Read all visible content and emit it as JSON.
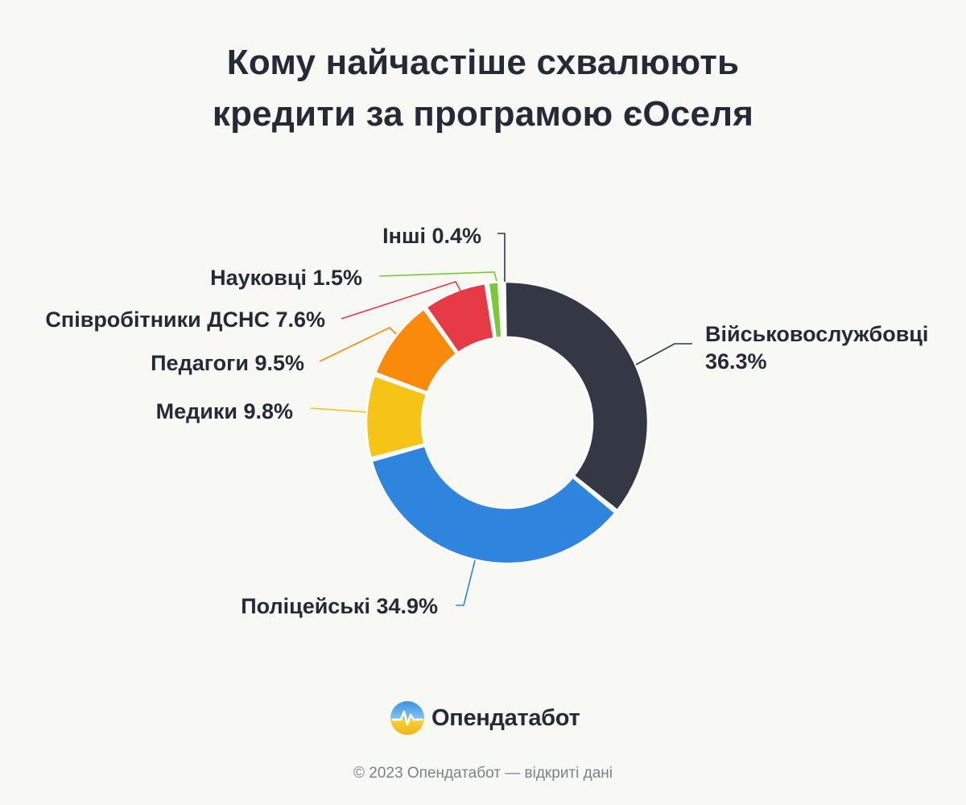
{
  "title": {
    "line1": "Кому найчастіше схвалюють",
    "line2": "кредити за програмою єОселя"
  },
  "chart_data": {
    "type": "pie",
    "variant": "donut",
    "categories": [
      "Військовослужбовці",
      "Поліцейські",
      "Медики",
      "Педагоги",
      "Співробітники ДСНС",
      "Науковці",
      "Інші"
    ],
    "values": [
      36.3,
      34.9,
      9.8,
      9.5,
      7.6,
      1.5,
      0.4
    ],
    "colors": [
      "#343844",
      "#2f84de",
      "#f6c416",
      "#f98a0c",
      "#e63b46",
      "#7ac93a",
      "#343844"
    ],
    "labels": [
      {
        "name": "Військовослужбовці",
        "value": "36.3%"
      },
      {
        "name": "Поліцейські",
        "value": "34.9%"
      },
      {
        "name": "Медики",
        "value": "9.8%"
      },
      {
        "name": "Педагоги",
        "value": "9.5%"
      },
      {
        "name": "Співробітники ДСНС",
        "value": "7.6%"
      },
      {
        "name": "Науковці",
        "value": "1.5%"
      },
      {
        "name": "Інші",
        "value": "0.4%"
      }
    ]
  },
  "brand": {
    "name": "Опендатабот",
    "logo_icon": "opendatabot-logo-icon"
  },
  "footer": "© 2023 Опендатабот — відкриті дані"
}
